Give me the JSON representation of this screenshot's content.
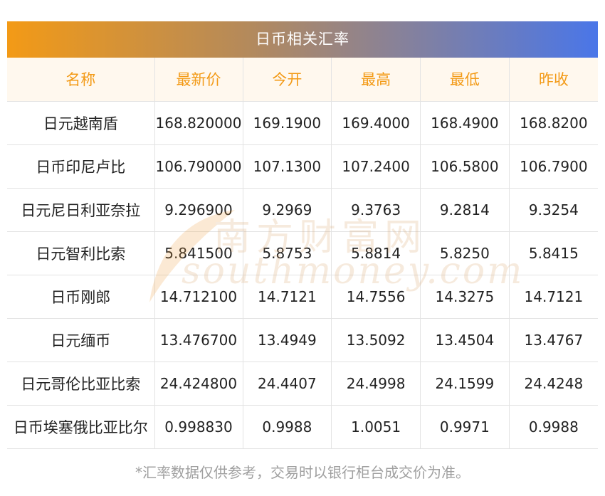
{
  "title": "日币相关汇率",
  "headers": [
    "名称",
    "最新价",
    "今开",
    "最高",
    "最低",
    "昨收"
  ],
  "rows": [
    {
      "name": "日元越南盾",
      "latest": "168.820000",
      "open": "169.1900",
      "high": "169.4000",
      "low": "168.4900",
      "prev_close": "168.8200"
    },
    {
      "name": "日币印尼卢比",
      "latest": "106.790000",
      "open": "107.1300",
      "high": "107.2400",
      "low": "106.5800",
      "prev_close": "106.7900"
    },
    {
      "name": "日元尼日利亚奈拉",
      "latest": "9.296900",
      "open": "9.2969",
      "high": "9.3763",
      "low": "9.2814",
      "prev_close": "9.3254"
    },
    {
      "name": "日元智利比索",
      "latest": "5.841500",
      "open": "5.8753",
      "high": "5.8814",
      "low": "5.8250",
      "prev_close": "5.8415"
    },
    {
      "name": "日币刚郎",
      "latest": "14.712100",
      "open": "14.7121",
      "high": "14.7556",
      "low": "14.3275",
      "prev_close": "14.7121"
    },
    {
      "name": "日元缅币",
      "latest": "13.476700",
      "open": "13.4949",
      "high": "13.5092",
      "low": "13.4504",
      "prev_close": "13.4767"
    },
    {
      "name": "日元哥伦比亚比索",
      "latest": "24.424800",
      "open": "24.4407",
      "high": "24.4998",
      "low": "24.1599",
      "prev_close": "24.4248"
    },
    {
      "name": "日币埃塞俄比亚比尔",
      "latest": "0.998830",
      "open": "0.9988",
      "high": "1.0051",
      "low": "0.9971",
      "prev_close": "0.9988"
    }
  ],
  "watermark": {
    "cn": "南方财富网",
    "en": "southmoney.com"
  },
  "footnote": "*汇率数据仅供参考，交易时以银行柜台成交价为准。",
  "colors": {
    "header_text": "#f39a16",
    "header_bg": "#fff8ee",
    "title_gradient_start": "#f39a16",
    "title_gradient_end": "#4a76e8"
  }
}
